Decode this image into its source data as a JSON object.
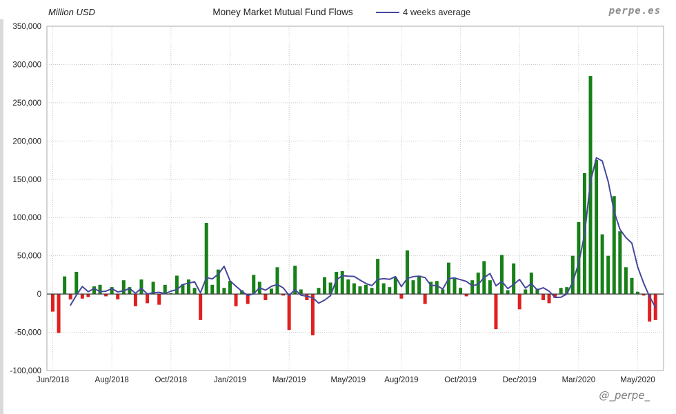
{
  "header": {
    "y_axis_title": "Million USD",
    "title": "Money Market Mutual Fund Flows",
    "legend_label": "4 weeks average"
  },
  "watermarks": {
    "top_right": "perpe.es",
    "bottom_right": "@_perpe_"
  },
  "chart_data": {
    "type": "bar",
    "title": "Money Market Mutual Fund Flows",
    "ylabel": "Million USD",
    "frequency": "weekly",
    "x_range": [
      "Jun/2018",
      "May/2020"
    ],
    "ylim": [
      -100000,
      350000
    ],
    "ytick_step": 50000,
    "grid": true,
    "legend_position": "top",
    "xticks": [
      {
        "i": 0,
        "label": "Jun/2018"
      },
      {
        "i": 10,
        "label": "Aug/2018"
      },
      {
        "i": 20,
        "label": "Oct/2018"
      },
      {
        "i": 30,
        "label": "Jan/2019"
      },
      {
        "i": 40,
        "label": "Mar/2019"
      },
      {
        "i": 50,
        "label": "May/2019"
      },
      {
        "i": 59,
        "label": "Aug/2019"
      },
      {
        "i": 69,
        "label": "Oct/2019"
      },
      {
        "i": 79,
        "label": "Dec/2019"
      },
      {
        "i": 89,
        "label": "Mar/2020"
      },
      {
        "i": 99,
        "label": "May/2020"
      }
    ],
    "bars": {
      "name": "Weekly money market mutual fund flow (Million USD)",
      "positive_color": "#188018",
      "negative_color": "#e01f1f",
      "values": [
        -23000,
        -51000,
        23000,
        -7000,
        29000,
        -6000,
        -4000,
        10000,
        12000,
        -3000,
        9000,
        -7000,
        18000,
        9000,
        -16000,
        19000,
        -12000,
        16000,
        -14000,
        12000,
        1000,
        24000,
        13000,
        19000,
        8000,
        -34000,
        93000,
        12000,
        32000,
        8000,
        17000,
        -16000,
        5000,
        -13000,
        25000,
        16000,
        -8000,
        7000,
        35000,
        -2000,
        -47000,
        37000,
        6000,
        -8000,
        -54000,
        8000,
        22000,
        15000,
        29000,
        30000,
        19000,
        14000,
        10000,
        12000,
        8000,
        46000,
        14000,
        9000,
        22000,
        -6000,
        57000,
        18000,
        24000,
        -13000,
        16000,
        17000,
        6000,
        41000,
        20000,
        8000,
        -3000,
        18000,
        28000,
        43000,
        18000,
        -46000,
        51000,
        5000,
        40000,
        -20000,
        6000,
        28000,
        7000,
        -8000,
        -12000,
        -5000,
        8000,
        9000,
        50000,
        94000,
        158000,
        285000,
        175000,
        78000,
        50000,
        128000,
        82000,
        35000,
        21000,
        3000,
        -2000,
        -36000,
        -34000
      ]
    },
    "line": {
      "name": "4 weeks average",
      "window": 4,
      "color": "#47479b",
      "derived_from": "trailing 4-week mean of bars.values"
    }
  }
}
